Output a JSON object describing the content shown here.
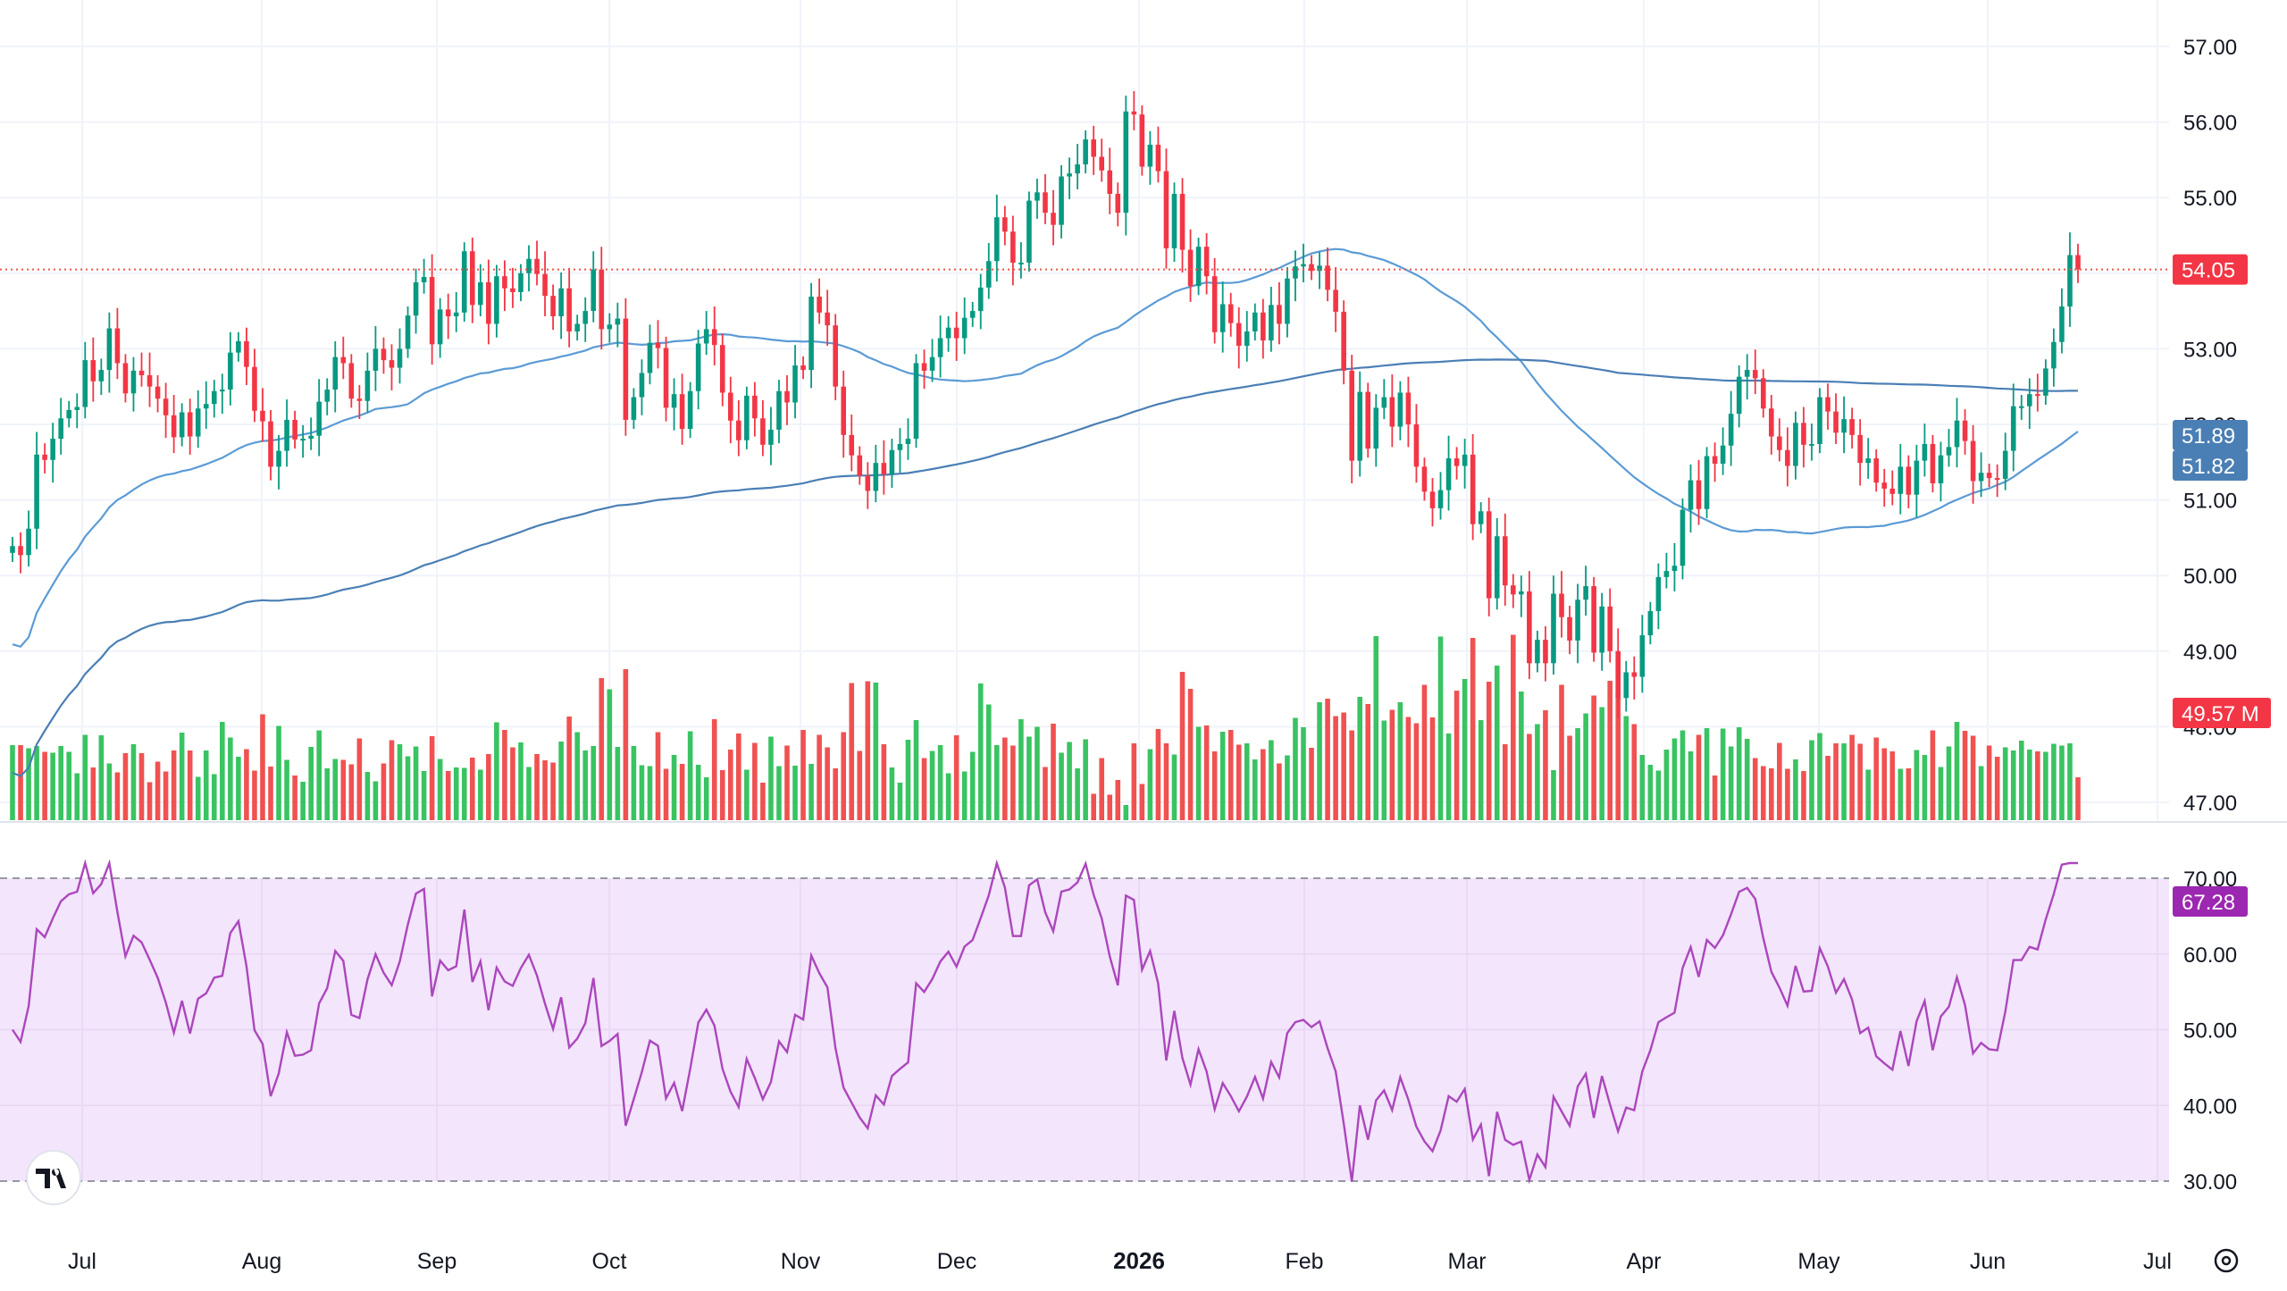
{
  "chart_data": {
    "type": "candlestick",
    "symbol": "",
    "last_price_label": "54.05",
    "price_axis": {
      "range": [
        46.7,
        57.6
      ],
      "ticks": [
        "57.00",
        "56.00",
        "55.00",
        "54.00",
        "53.00",
        "52.00",
        "51.00",
        "50.00",
        "49.00",
        "48.00",
        "47.00"
      ]
    },
    "time_axis": {
      "labels": [
        "Jul",
        "Aug",
        "Sep",
        "Oct",
        "Nov",
        "Dec",
        "2026",
        "Feb",
        "Mar",
        "Apr",
        "May",
        "Jun",
        "Jul"
      ],
      "bold_label": "2026"
    },
    "tags": {
      "last_price": "54.05",
      "ma_fast": "51.89",
      "ma_slow": "51.82",
      "volume": "49.57 M",
      "rsi": "67.28"
    },
    "rsi_panel": {
      "range": [
        26,
        73
      ],
      "ticks": [
        "70.00",
        "60.00",
        "50.00",
        "40.00",
        "30.00"
      ],
      "upper_band": 70,
      "lower_band": 30
    },
    "candles": {
      "dates": [
        "2025-06-23",
        "2026-06-18"
      ],
      "open": [
        50.3,
        50.39,
        50.27,
        50.62,
        51.6,
        51.53,
        51.81,
        52.08,
        52.19,
        52.23,
        52.85,
        52.57,
        52.72,
        53.27,
        52.81,
        52.41,
        52.71,
        52.65,
        52.5,
        52.34,
        52.12,
        51.83,
        52.16,
        51.84,
        52.21,
        52.27,
        52.44,
        52.46,
        52.95,
        53.1,
        52.76,
        52.18,
        52.04,
        51.44,
        51.65,
        52.06,
        51.8,
        51.81,
        51.85,
        52.3,
        52.46,
        52.89,
        52.81,
        52.34,
        52.31,
        52.71,
        53.0,
        52.85,
        52.75,
        53.0,
        53.44,
        53.88,
        53.95,
        53.06,
        53.52,
        53.43,
        53.48,
        54.29,
        53.58,
        53.88,
        53.33,
        53.96,
        53.8,
        53.75,
        54.0,
        54.19,
        53.99,
        53.7,
        53.43,
        53.8,
        53.23,
        53.33,
        53.5,
        54.05,
        53.26,
        53.32,
        53.4,
        52.06,
        52.36,
        52.68,
        53.08,
        53.01,
        52.22,
        52.4,
        51.94,
        52.44,
        53.07,
        53.26,
        53.05,
        52.42,
        52.05,
        51.79,
        52.38,
        52.08,
        51.73,
        51.93,
        52.44,
        52.29,
        52.78,
        52.72,
        53.69,
        53.48,
        53.31,
        52.5,
        51.86,
        51.59,
        51.32,
        51.12,
        51.49,
        51.34,
        51.66,
        51.74,
        51.81,
        52.81,
        52.71,
        52.89,
        53.14,
        53.28,
        53.14,
        53.41,
        53.5,
        53.81,
        54.16,
        54.74,
        54.55,
        54.14,
        54.14,
        54.96,
        55.07,
        54.8,
        54.64,
        55.28,
        55.32,
        55.44,
        55.77,
        55.54,
        55.36,
        55.05,
        54.8,
        56.14,
        56.1,
        55.41,
        55.7,
        55.35,
        54.33,
        55.05,
        54.31,
        53.83,
        54.35,
        53.96,
        53.22,
        53.59,
        53.34,
        53.04,
        53.23,
        53.48,
        53.11,
        53.58,
        53.33,
        53.93,
        54.09,
        54.12,
        54.03,
        54.1,
        53.78,
        53.49,
        52.71,
        51.52,
        52.43,
        51.68,
        52.22,
        52.36,
        51.97,
        52.42,
        52.0,
        51.44,
        51.11,
        50.89,
        51.13,
        51.55,
        51.45,
        51.6,
        50.68,
        50.85,
        49.7,
        50.52,
        49.87,
        49.75,
        49.79,
        48.84,
        49.15,
        48.84,
        49.76,
        49.45,
        49.14,
        49.68,
        49.86,
        48.98,
        49.59,
        49.0,
        48.38,
        48.72,
        48.66,
        49.21,
        49.53,
        49.98,
        50.06,
        50.13,
        50.87,
        51.26,
        50.88,
        51.58,
        51.48,
        51.72,
        52.14,
        52.63,
        52.72,
        52.61,
        52.21,
        51.84,
        51.66,
        51.45,
        52.02,
        51.73,
        51.74,
        52.36,
        52.17,
        51.89,
        52.07,
        51.86,
        51.49,
        51.55,
        51.23,
        51.15,
        51.08,
        51.44,
        51.07,
        51.52,
        51.74,
        51.22,
        51.59,
        51.7,
        52.05,
        51.78,
        51.25,
        51.36,
        51.29,
        51.28,
        51.65,
        52.24,
        52.24,
        52.4,
        52.38,
        52.74,
        53.09,
        53.56,
        54.24
      ],
      "close": [
        50.39,
        50.27,
        50.62,
        51.6,
        51.53,
        51.81,
        52.08,
        52.19,
        52.23,
        52.85,
        52.57,
        52.72,
        53.27,
        52.81,
        52.41,
        52.71,
        52.65,
        52.5,
        52.34,
        52.12,
        51.83,
        52.16,
        51.84,
        52.21,
        52.27,
        52.44,
        52.46,
        52.95,
        53.1,
        52.76,
        52.18,
        52.04,
        51.44,
        51.65,
        52.06,
        51.8,
        51.81,
        51.85,
        52.3,
        52.46,
        52.89,
        52.81,
        52.34,
        52.31,
        52.71,
        53.0,
        52.85,
        52.75,
        53.0,
        53.44,
        53.88,
        53.95,
        53.06,
        53.52,
        53.43,
        53.48,
        54.29,
        53.58,
        53.88,
        53.33,
        53.96,
        53.8,
        53.75,
        54.0,
        54.19,
        53.99,
        53.7,
        53.43,
        53.8,
        53.23,
        53.33,
        53.5,
        54.05,
        53.26,
        53.32,
        53.4,
        52.06,
        52.36,
        52.68,
        53.08,
        53.01,
        52.22,
        52.4,
        51.94,
        52.44,
        53.07,
        53.26,
        53.05,
        52.42,
        52.05,
        51.79,
        52.38,
        52.08,
        51.73,
        51.93,
        52.44,
        52.29,
        52.78,
        52.72,
        53.69,
        53.48,
        53.31,
        52.5,
        51.86,
        51.59,
        51.32,
        51.12,
        51.49,
        51.34,
        51.66,
        51.74,
        51.81,
        52.81,
        52.71,
        52.89,
        53.14,
        53.28,
        53.14,
        53.41,
        53.5,
        53.81,
        54.16,
        54.74,
        54.55,
        54.14,
        54.14,
        54.96,
        55.07,
        54.8,
        54.64,
        55.28,
        55.32,
        55.44,
        55.77,
        55.54,
        55.36,
        55.05,
        54.8,
        56.14,
        56.1,
        55.41,
        55.7,
        55.35,
        54.33,
        55.05,
        54.31,
        53.83,
        54.35,
        53.96,
        53.22,
        53.59,
        53.34,
        53.04,
        53.23,
        53.48,
        53.11,
        53.58,
        53.33,
        53.93,
        54.09,
        54.12,
        54.03,
        54.1,
        53.78,
        53.49,
        52.71,
        51.52,
        52.43,
        51.68,
        52.22,
        52.36,
        51.97,
        52.42,
        52.0,
        51.44,
        51.11,
        50.89,
        51.13,
        51.55,
        51.45,
        51.6,
        50.68,
        50.85,
        49.7,
        50.52,
        49.87,
        49.75,
        49.79,
        48.84,
        49.15,
        48.84,
        49.76,
        49.45,
        49.14,
        49.68,
        49.86,
        48.98,
        49.59,
        49.0,
        48.38,
        48.72,
        48.66,
        49.21,
        49.53,
        49.98,
        50.06,
        50.13,
        50.87,
        51.26,
        50.88,
        51.58,
        51.48,
        51.72,
        52.14,
        52.63,
        52.72,
        52.61,
        52.21,
        51.84,
        51.66,
        51.45,
        52.02,
        51.73,
        51.74,
        52.36,
        52.17,
        51.89,
        52.07,
        51.86,
        51.49,
        51.55,
        51.23,
        51.15,
        51.08,
        51.44,
        51.07,
        51.52,
        51.74,
        51.22,
        51.59,
        51.7,
        52.05,
        51.78,
        51.25,
        51.36,
        51.29,
        51.28,
        51.65,
        52.24,
        52.24,
        52.4,
        52.38,
        52.74,
        53.09,
        53.56,
        54.24,
        54.05
      ],
      "volume_millions": [
        56.8,
        56.8,
        56.1,
        56.6,
        55.3,
        55.1,
        56.6,
        55.3,
        50.5,
        59.1,
        51.8,
        59.0,
        52.7,
        50.7,
        55.0,
        57.0,
        55.0,
        48.5,
        53.1,
        50.9,
        55.6,
        59.6,
        55.6,
        49.7,
        55.6,
        50.3,
        62.0,
        58.5,
        54.2,
        55.9,
        51.1,
        63.7,
        52.0,
        61.1,
        53.5,
        50.0,
        48.6,
        56.4,
        60.1,
        51.6,
        53.7,
        53.5,
        52.5,
        58.3,
        50.8,
        48.7,
        52.7,
        57.9,
        57.0,
        54.3,
        56.5,
        51.0,
        58.8,
        53.7,
        51.0,
        51.8,
        51.7,
        54.0,
        51.3,
        54.8,
        61.9,
        60.2,
        56.3,
        57.4,
        51.9,
        54.8,
        53.4,
        52.9,
        57.6,
        63.2,
        59.7,
        55.6,
        56.6,
        71.8,
        69.3,
        56.4,
        73.8,
        56.6,
        52.3,
        52.1,
        59.7,
        51.5,
        54.6,
        52.6,
        59.9,
        52.4,
        49.6,
        62.6,
        51.2,
        55.8,
        59.4,
        51.3,
        57.3,
        48.4,
        58.7,
        52.1,
        56.7,
        52.2,
        60.2,
        52.6,
        59.1,
        56.3,
        51.6,
        59.7,
        70.7,
        55.5,
        71.1,
        70.8,
        57.0,
        51.8,
        48.4,
        58.0,
        62.4,
        53.9,
        55.5,
        56.8,
        50.5,
        59.0,
        50.9,
        55.3,
        70.6,
        65.9,
        56.8,
        58.5,
        56.7,
        62.6,
        58.7,
        60.9,
        51.9,
        61.6,
        55.1,
        57.5,
        51.6,
        58.1,
        45.9,
        53.9,
        45.7,
        49.0,
        43.4,
        57.2,
        48.1,
        55.9,
        60.4,
        57.2,
        54.7,
        73.2,
        69.4,
        60.9,
        61.2,
        55.4,
        59.8,
        60.2,
        56.9,
        57.2,
        53.6,
        55.9,
        57.9,
        52.7,
        54.5,
        62.9,
        60.8,
        56.2,
        66.4,
        67.2,
        63.3,
        64.1,
        60.1,
        67.6,
        66.0,
        81.2,
        62.3,
        64.7,
        66.4,
        63.1,
        61.7,
        70.3,
        63.0,
        81.1,
        59.4,
        69.0,
        71.6,
        80.8,
        62.4,
        71.0,
        74.6,
        57.0,
        81.5,
        68.8,
        59.3,
        61.5,
        64.6,
        51.2,
        70.3,
        58.9,
        60.6,
        63.9,
        67.9,
        65.3,
        71.2,
        68.4,
        63.3,
        61.5,
        54.6,
        52.4,
        51.1,
        55.8,
        58.3,
        60.1,
        55.4,
        59.1,
        60.6,
        50.0,
        60.5,
        56.5,
        60.8,
        58.2,
        53.9,
        52.1,
        51.6,
        57.3,
        51.5,
        53.6,
        51.0,
        57.9,
        59.5,
        54.4,
        57.2,
        57.2,
        59.1,
        57.1,
        51.3,
        58.5,
        56.1,
        55.4,
        51.5,
        51.6,
        55.7,
        54.6,
        60.1,
        51.9,
        56.5,
        62.0,
        60.0,
        58.9,
        52.1,
        56.7,
        54.2,
        56.3,
        55.6,
        57.8,
        55.8,
        55.4,
        55.3,
        57.1,
        56.7,
        57.2,
        49.6
      ],
      "note": "daily OHLC series, first and last dates shown in the visible range"
    },
    "series": [
      {
        "values_first_last": [
          48.9,
          51.89
        ]
      },
      {
        "values_first_last": [
          47.7,
          51.82
        ]
      }
    ]
  }
}
